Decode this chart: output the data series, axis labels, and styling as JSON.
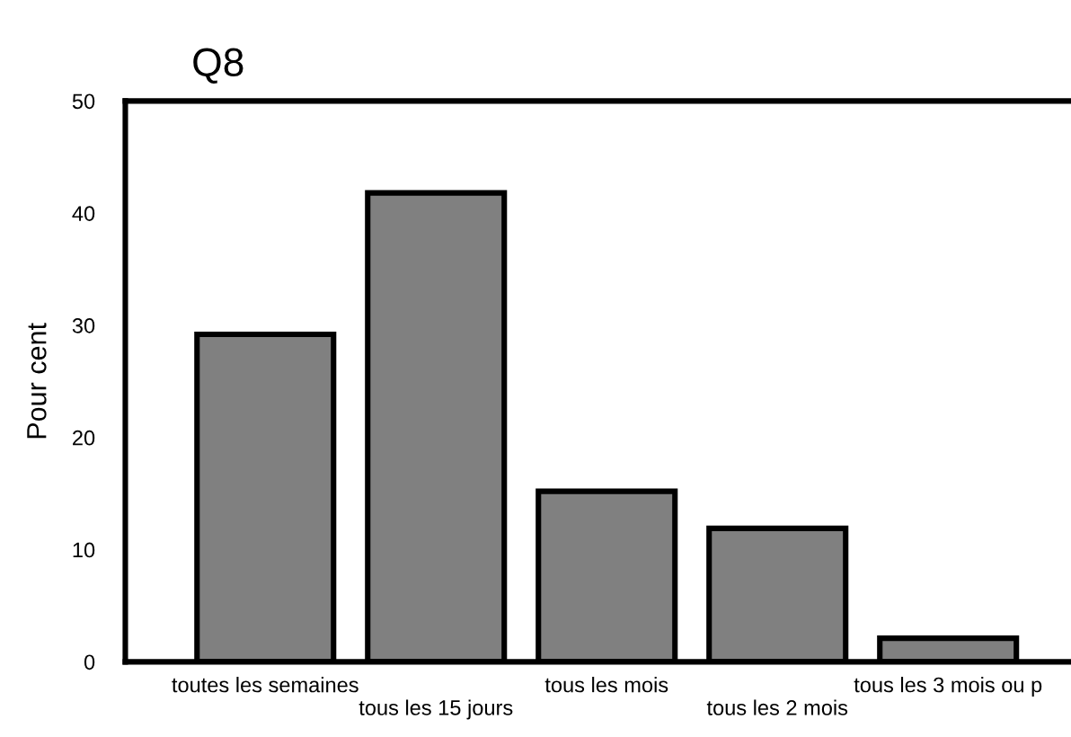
{
  "chart_data": {
    "type": "bar",
    "title": "Q8",
    "ylabel": "Pour cent",
    "categories": [
      "toutes les semaines",
      "tous les 15 jours",
      "tous les mois",
      "tous les 2 mois",
      "tous les 3 mois ou p"
    ],
    "values": [
      29.2,
      41.8,
      15.2,
      11.9,
      2.1
    ],
    "color": "#808080",
    "ylim": [
      0,
      50
    ],
    "yticks": [
      0,
      10,
      20,
      30,
      40,
      50
    ],
    "grid": false,
    "legend": false
  }
}
